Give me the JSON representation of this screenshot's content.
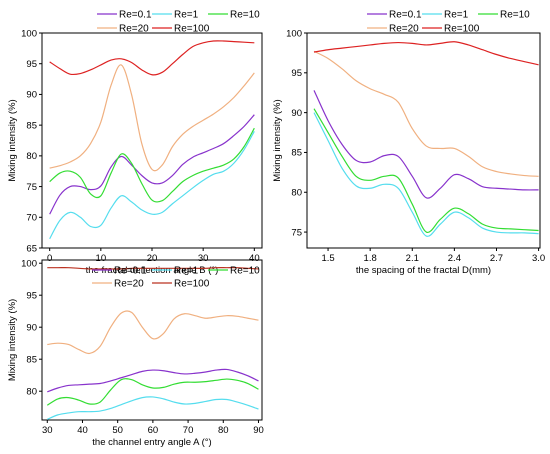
{
  "chart_data": [
    {
      "type": "line",
      "id": "chart-a",
      "xlabel": "the fractal deflection angle B (°)",
      "ylabel": "Mixing intensity (%)",
      "xlim": [
        -1.5,
        41.5
      ],
      "ylim": [
        65,
        100
      ],
      "xticks": [
        0,
        10,
        20,
        30,
        40
      ],
      "yticks": [
        65,
        70,
        75,
        80,
        85,
        90,
        95,
        100
      ],
      "grid": false,
      "legend_position": "top",
      "series": [
        {
          "name": "Re=0.1",
          "color": "#8833cc",
          "x": [
            0,
            2,
            4,
            6,
            8,
            10,
            12,
            14,
            16,
            18,
            20,
            22,
            24,
            26,
            28,
            30,
            32,
            34,
            36,
            38,
            40
          ],
          "y": [
            70.5,
            73.6,
            75.0,
            75.0,
            74.5,
            75.1,
            78.2,
            79.9,
            78.5,
            76.8,
            75.6,
            75.6,
            76.8,
            78.6,
            79.8,
            80.5,
            81.2,
            82.0,
            83.3,
            84.8,
            86.7
          ]
        },
        {
          "name": "Re=1",
          "color": "#55ddee",
          "x": [
            0,
            2,
            4,
            6,
            8,
            10,
            12,
            14,
            16,
            18,
            20,
            22,
            24,
            26,
            28,
            30,
            32,
            34,
            36,
            38,
            40
          ],
          "y": [
            66.5,
            69.5,
            70.8,
            70.0,
            68.5,
            68.7,
            71.5,
            73.5,
            72.5,
            71.2,
            70.5,
            70.8,
            72.2,
            73.5,
            74.8,
            76.0,
            77.0,
            77.5,
            78.8,
            81.0,
            84.0
          ]
        },
        {
          "name": "Re=10",
          "color": "#33dd33",
          "x": [
            0,
            2,
            4,
            6,
            8,
            10,
            12,
            14,
            16,
            18,
            20,
            22,
            24,
            26,
            28,
            30,
            32,
            34,
            36,
            38,
            40
          ],
          "y": [
            75.8,
            77.2,
            77.5,
            76.5,
            73.8,
            73.5,
            77.2,
            80.3,
            78.8,
            75.5,
            72.8,
            72.7,
            74.2,
            75.8,
            76.8,
            77.5,
            78.0,
            78.5,
            79.5,
            81.5,
            84.5
          ]
        },
        {
          "name": "Re=20",
          "color": "#f0b080",
          "x": [
            0,
            2,
            4,
            6,
            8,
            10,
            12,
            14,
            16,
            18,
            20,
            22,
            24,
            26,
            28,
            30,
            32,
            34,
            36,
            38,
            40
          ],
          "y": [
            78.0,
            78.4,
            79.0,
            80.0,
            82.0,
            85.5,
            91.5,
            94.8,
            90.0,
            82.0,
            77.8,
            78.5,
            81.5,
            83.5,
            84.8,
            85.8,
            86.8,
            88.0,
            89.5,
            91.4,
            93.5
          ]
        },
        {
          "name": "Re=100",
          "color": "#dd2222",
          "x": [
            0,
            2,
            4,
            6,
            8,
            10,
            12,
            14,
            16,
            18,
            20,
            22,
            24,
            26,
            28,
            30,
            32,
            34,
            36,
            38,
            40
          ],
          "y": [
            95.3,
            94.2,
            93.3,
            93.4,
            94.0,
            94.8,
            95.6,
            95.8,
            95.2,
            94.0,
            93.2,
            93.6,
            95.0,
            96.5,
            97.8,
            98.4,
            98.7,
            98.7,
            98.6,
            98.5,
            98.4
          ]
        }
      ]
    },
    {
      "type": "line",
      "id": "chart-b",
      "xlabel": "the spacing of the fractal D(mm)",
      "ylabel": "Mixing intensity (%)",
      "xlim": [
        1.35,
        3.01
      ],
      "ylim": [
        73,
        100
      ],
      "xticks": [
        "1.5",
        "1.8",
        "2.1",
        "2.4",
        "2.7",
        "3.0"
      ],
      "yticks": [
        75,
        80,
        85,
        90,
        95,
        100
      ],
      "grid": false,
      "legend_position": "top",
      "series": [
        {
          "name": "Re=0.1",
          "color": "#8833cc",
          "x": [
            1.4,
            1.5,
            1.6,
            1.7,
            1.8,
            1.9,
            2.0,
            2.1,
            2.2,
            2.3,
            2.4,
            2.5,
            2.6,
            2.7,
            2.8,
            2.9,
            3.0
          ],
          "y": [
            92.8,
            89.0,
            86.0,
            84.0,
            83.8,
            84.6,
            84.5,
            82.0,
            79.3,
            80.5,
            82.2,
            81.7,
            80.7,
            80.5,
            80.4,
            80.3,
            80.3
          ]
        },
        {
          "name": "Re=1",
          "color": "#55ddee",
          "x": [
            1.4,
            1.5,
            1.6,
            1.7,
            1.8,
            1.9,
            2.0,
            2.1,
            2.2,
            2.3,
            2.4,
            2.5,
            2.6,
            2.7,
            2.8,
            2.9,
            3.0
          ],
          "y": [
            90.0,
            86.5,
            83.0,
            80.8,
            80.5,
            81.0,
            80.5,
            77.5,
            74.5,
            76.0,
            77.5,
            76.8,
            75.5,
            75.0,
            74.9,
            74.9,
            74.8
          ]
        },
        {
          "name": "Re=10",
          "color": "#33dd33",
          "x": [
            1.4,
            1.5,
            1.6,
            1.7,
            1.8,
            1.9,
            2.0,
            2.1,
            2.2,
            2.3,
            2.4,
            2.5,
            2.6,
            2.7,
            2.8,
            2.9,
            3.0
          ],
          "y": [
            90.5,
            87.5,
            84.5,
            82.0,
            81.5,
            82.0,
            81.8,
            78.5,
            75.0,
            76.6,
            78.0,
            77.3,
            76.0,
            75.5,
            75.4,
            75.3,
            75.2
          ]
        },
        {
          "name": "Re=20",
          "color": "#f0b080",
          "x": [
            1.4,
            1.5,
            1.6,
            1.7,
            1.8,
            1.9,
            2.0,
            2.1,
            2.2,
            2.3,
            2.4,
            2.5,
            2.6,
            2.7,
            2.8,
            2.9,
            3.0
          ],
          "y": [
            97.7,
            96.8,
            95.5,
            94.0,
            93.0,
            92.3,
            91.3,
            88.0,
            85.8,
            85.5,
            85.5,
            84.5,
            83.2,
            82.6,
            82.3,
            82.1,
            82.0
          ]
        },
        {
          "name": "Re=100",
          "color": "#dd2222",
          "x": [
            1.4,
            1.5,
            1.6,
            1.7,
            1.8,
            1.9,
            2.0,
            2.1,
            2.2,
            2.3,
            2.4,
            2.5,
            2.6,
            2.7,
            2.8,
            2.9,
            3.0
          ],
          "y": [
            97.6,
            97.9,
            98.1,
            98.3,
            98.5,
            98.7,
            98.8,
            98.7,
            98.5,
            98.7,
            98.9,
            98.5,
            97.9,
            97.3,
            96.8,
            96.4,
            96.0
          ]
        }
      ]
    },
    {
      "type": "line",
      "id": "chart-c",
      "xlabel": "the channel entry angle A (°)",
      "ylabel": "Mixing intensity (%)",
      "xlim": [
        28.5,
        91
      ],
      "ylim": [
        75.5,
        100.5
      ],
      "xticks": [
        30,
        40,
        50,
        60,
        70,
        80,
        90
      ],
      "yticks": [
        80,
        85,
        90,
        95,
        100
      ],
      "grid": false,
      "legend_position": "top",
      "series": [
        {
          "name": "Re=0.1",
          "color": "#8833cc",
          "x": [
            30,
            33,
            36,
            39,
            42,
            45,
            48,
            51,
            54,
            57,
            60,
            63,
            66,
            69,
            72,
            75,
            78,
            81,
            84,
            87,
            90
          ],
          "y": [
            79.9,
            80.5,
            80.9,
            81.0,
            81.1,
            81.2,
            81.6,
            82.1,
            82.6,
            83.1,
            83.3,
            83.2,
            82.9,
            82.7,
            82.8,
            83.0,
            83.3,
            83.4,
            83.0,
            82.4,
            81.6
          ]
        },
        {
          "name": "Re=1",
          "color": "#55ddee",
          "x": [
            30,
            33,
            36,
            39,
            42,
            45,
            48,
            51,
            54,
            57,
            60,
            63,
            66,
            69,
            72,
            75,
            78,
            81,
            84,
            87,
            90
          ],
          "y": [
            75.6,
            76.3,
            76.6,
            76.8,
            76.8,
            76.9,
            77.3,
            77.9,
            78.5,
            79.0,
            79.1,
            78.8,
            78.3,
            78.0,
            78.1,
            78.4,
            78.7,
            78.7,
            78.3,
            77.8,
            77.2
          ]
        },
        {
          "name": "Re=10",
          "color": "#33dd33",
          "x": [
            30,
            33,
            36,
            39,
            42,
            45,
            48,
            51,
            54,
            57,
            60,
            63,
            66,
            69,
            72,
            75,
            78,
            81,
            84,
            87,
            90
          ],
          "y": [
            77.8,
            78.8,
            79.0,
            78.6,
            78.0,
            78.3,
            80.2,
            81.8,
            81.8,
            81.0,
            80.5,
            80.6,
            81.1,
            81.4,
            81.4,
            81.5,
            81.7,
            81.9,
            81.7,
            81.2,
            80.3
          ]
        },
        {
          "name": "Re=20",
          "color": "#f0b080",
          "x": [
            30,
            33,
            36,
            39,
            42,
            45,
            48,
            51,
            54,
            57,
            60,
            63,
            66,
            69,
            72,
            75,
            78,
            81,
            84,
            87,
            90
          ],
          "y": [
            87.3,
            87.5,
            87.3,
            86.5,
            85.9,
            87.0,
            90.0,
            92.2,
            92.3,
            90.0,
            88.2,
            89.0,
            91.3,
            92.1,
            91.8,
            91.4,
            91.6,
            91.8,
            91.7,
            91.4,
            91.1
          ]
        },
        {
          "name": "Re=100",
          "color": "#bb3322",
          "x": [
            30,
            33,
            36,
            39,
            42,
            45,
            48,
            51,
            54,
            57,
            60,
            63,
            66,
            69,
            72,
            75,
            78,
            81,
            84,
            87,
            90
          ],
          "y": [
            99.3,
            99.3,
            99.3,
            99.2,
            99.1,
            99.1,
            99.1,
            99.1,
            99.2,
            99.2,
            99.2,
            99.2,
            99.2,
            99.2,
            99.2,
            99.2,
            99.3,
            99.3,
            99.3,
            99.2,
            99.1
          ]
        }
      ]
    }
  ]
}
